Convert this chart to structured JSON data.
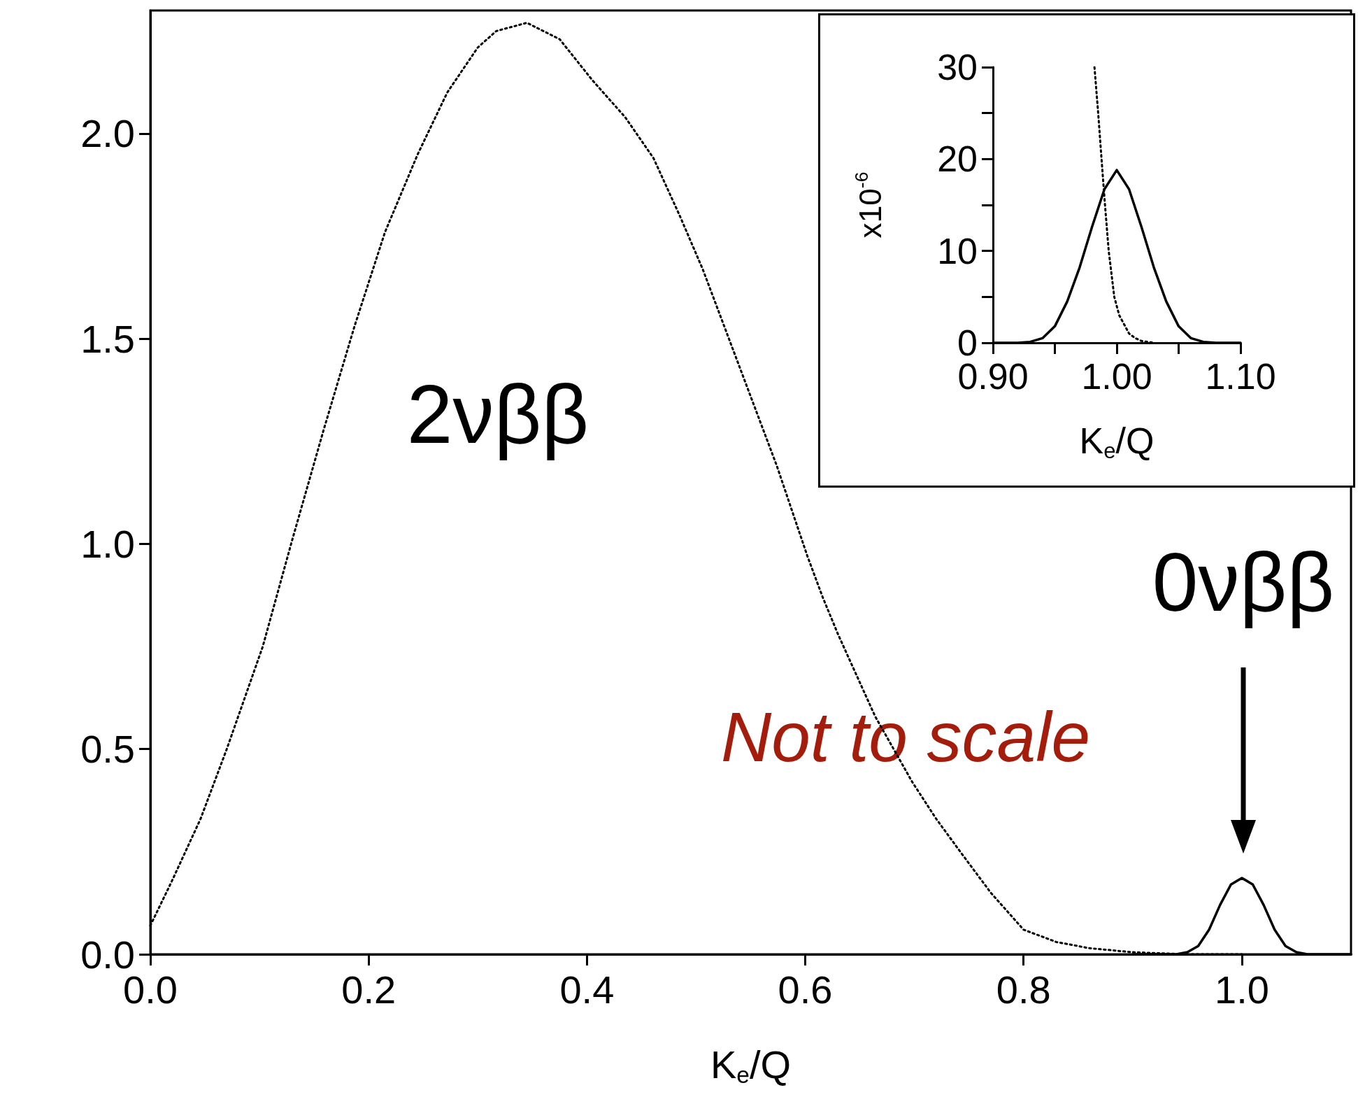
{
  "chart_data": [
    {
      "type": "line",
      "xlabel": "K$_{e}$/Q",
      "xlim": [
        0,
        1.1
      ],
      "ylim": [
        0,
        2.3
      ],
      "xticks": [
        {
          "value": 0,
          "label": "0.0"
        },
        {
          "value": 0.2,
          "label": "0.2"
        },
        {
          "value": 0.4,
          "label": "0.4"
        },
        {
          "value": 0.6,
          "label": "0.6"
        },
        {
          "value": 0.8,
          "label": "0.8"
        },
        {
          "value": 1,
          "label": "1.0"
        }
      ],
      "yticks": [
        {
          "value": 0,
          "label": "0.0"
        },
        {
          "value": 0.5,
          "label": "0.5"
        },
        {
          "value": 1,
          "label": "1.0"
        },
        {
          "value": 1.5,
          "label": "1.5"
        },
        {
          "value": 2,
          "label": "2.0"
        }
      ],
      "grid": false,
      "marker": "none",
      "series": [
        {
          "color": "#000000",
          "line_style": "dotted",
          "x": [
            0,
            0.02,
            0.046,
            0.07,
            0.103,
            0.13,
            0.159,
            0.187,
            0.215,
            0.245,
            0.272,
            0.3,
            0.317,
            0.345,
            0.375,
            0.405,
            0.435,
            0.461,
            0.485,
            0.506,
            0.523,
            0.54,
            0.557,
            0.574,
            0.588,
            0.602,
            0.616,
            0.63,
            0.647,
            0.664,
            0.681,
            0.698,
            0.72,
            0.742,
            0.77,
            0.8,
            0.83,
            0.86,
            0.9,
            0.95,
            1.0
          ],
          "values": [
            0.07,
            0.18,
            0.33,
            0.5,
            0.75,
            1.01,
            1.28,
            1.53,
            1.76,
            1.95,
            2.1,
            2.21,
            2.25,
            2.27,
            2.23,
            2.13,
            2.04,
            1.94,
            1.8,
            1.67,
            1.55,
            1.43,
            1.31,
            1.19,
            1.08,
            0.97,
            0.87,
            0.78,
            0.68,
            0.58,
            0.5,
            0.42,
            0.33,
            0.25,
            0.15,
            0.06,
            0.03,
            0.015,
            0.005,
            0,
            0
          ]
        },
        {
          "color": "#000000",
          "line_style": "solid",
          "x": [
            0.9,
            0.94,
            0.95,
            0.96,
            0.97,
            0.98,
            0.99,
            1.0,
            1.01,
            1.02,
            1.03,
            1.04,
            1.05,
            1.06,
            1.07,
            1.1
          ],
          "values": [
            0,
            0,
            0.005,
            0.02,
            0.06,
            0.12,
            0.17,
            0.186,
            0.17,
            0.12,
            0.06,
            0.02,
            0.005,
            0,
            0,
            0
          ]
        }
      ],
      "annotations": [
        "2νββ",
        "0νββ",
        "Not to scale"
      ]
    },
    {
      "type": "line",
      "xlabel": "K$_{e}$/Q",
      "ylabel": "x10$^{-6}$",
      "xlim": [
        0.9,
        1.1
      ],
      "ylim": [
        0,
        30
      ],
      "xticks": [
        {
          "value": 0.9,
          "label": "0.90"
        },
        {
          "value": 0.95,
          "label": null
        },
        {
          "value": 1,
          "label": "1.00"
        },
        {
          "value": 1.05,
          "label": null
        },
        {
          "value": 1.1,
          "label": "1.10"
        }
      ],
      "yticks": [
        0,
        {
          "value": 5,
          "label": null
        },
        10,
        {
          "value": 15,
          "label": null
        },
        20,
        {
          "value": 25,
          "label": null
        },
        30
      ],
      "grid": false,
      "marker": "none",
      "series": [
        {
          "color": "#000000",
          "line_style": "solid",
          "x": [
            0.9,
            0.92,
            0.93,
            0.94,
            0.95,
            0.96,
            0.97,
            0.98,
            0.99,
            1.0,
            1.01,
            1.02,
            1.03,
            1.04,
            1.05,
            1.06,
            1.07,
            1.08,
            1.1
          ],
          "values": [
            0,
            0,
            0.1,
            0.5,
            1.8,
            4.5,
            8.2,
            12.6,
            16.7,
            18.8,
            16.7,
            12.6,
            8.2,
            4.5,
            1.8,
            0.5,
            0.1,
            0,
            0
          ]
        },
        {
          "color": "#000000",
          "line_style": "dotted",
          "x": [
            0.982,
            0.985,
            0.9877,
            0.9905,
            0.9935,
            0.998,
            1.002,
            1.006,
            1.01,
            1.015,
            1.02,
            1.03
          ],
          "values": [
            30,
            25,
            20,
            15,
            10,
            5,
            3,
            2,
            1,
            0.5,
            0.2,
            0
          ]
        }
      ]
    }
  ]
}
